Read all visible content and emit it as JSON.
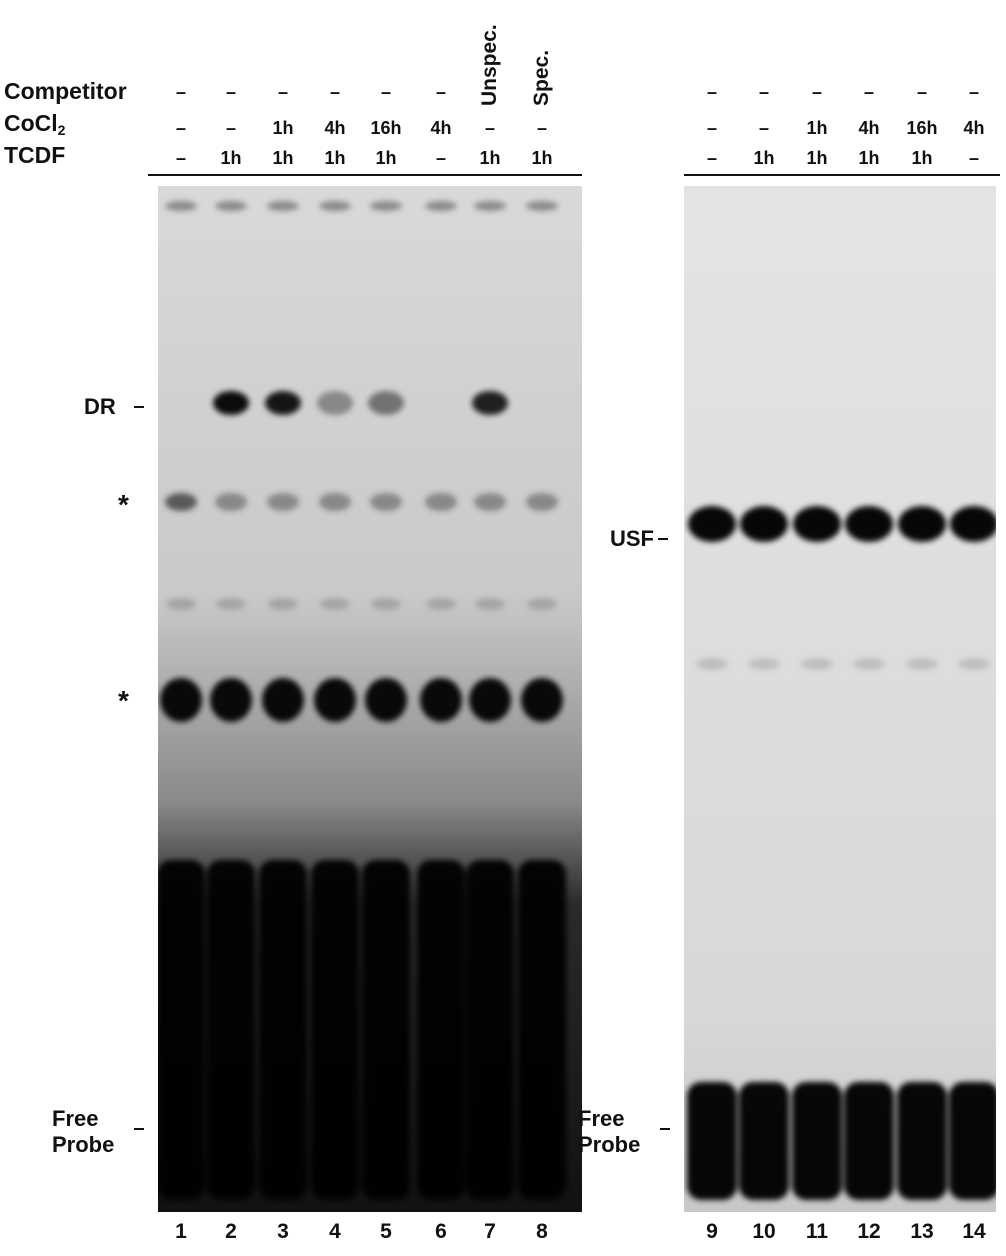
{
  "left_panel": {
    "row_labels": {
      "competitor": "Competitor",
      "cocl2": "CoCl",
      "cocl2_sub": "2",
      "tcdf": "TCDF"
    },
    "competitor": [
      "–",
      "–",
      "–",
      "–",
      "–",
      "–",
      "Unspec.",
      "Spec."
    ],
    "cocl2": [
      "–",
      "–",
      "1h",
      "4h",
      "16h",
      "4h",
      "–",
      "–"
    ],
    "tcdf": [
      "–",
      "1h",
      "1h",
      "1h",
      "1h",
      "–",
      "1h",
      "1h"
    ],
    "lane_numbers": [
      "1",
      "2",
      "3",
      "4",
      "5",
      "6",
      "7",
      "8"
    ],
    "markers": {
      "dr": "DR",
      "star1": "*",
      "star2": "*",
      "free_line1": "Free",
      "free_line2": "Probe"
    }
  },
  "right_panel": {
    "competitor": [
      "–",
      "–",
      "–",
      "–",
      "–",
      "–"
    ],
    "cocl2": [
      "–",
      "–",
      "1h",
      "4h",
      "16h",
      "4h"
    ],
    "tcdf": [
      "–",
      "1h",
      "1h",
      "1h",
      "1h",
      "–"
    ],
    "lane_numbers": [
      "9",
      "10",
      "11",
      "12",
      "13",
      "14"
    ],
    "markers": {
      "usf": "USF",
      "free_line1": "Free",
      "free_line2": "Probe"
    }
  }
}
